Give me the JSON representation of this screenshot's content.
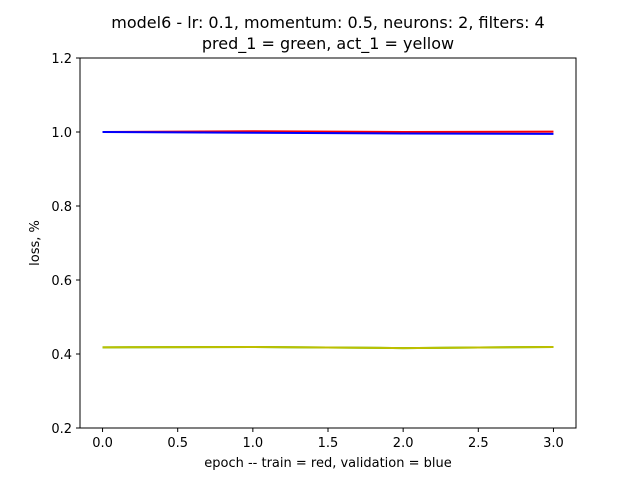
{
  "chart_data": {
    "type": "line",
    "title": "model6 - lr: 0.1, momentum: 0.5, neurons: 2, filters: 4",
    "subtitle": "pred_1 = green, act_1 = yellow",
    "xlabel": "epoch -- train = red, validation = blue",
    "ylabel": "loss, %",
    "xlim": [
      -0.15,
      3.15
    ],
    "ylim": [
      0.2,
      1.2
    ],
    "x_ticks": [
      0.0,
      0.5,
      1.0,
      1.5,
      2.0,
      2.5,
      3.0
    ],
    "x_tick_labels": [
      "0.0",
      "0.5",
      "1.0",
      "1.5",
      "2.0",
      "2.5",
      "3.0"
    ],
    "y_ticks": [
      0.2,
      0.4,
      0.6,
      0.8,
      1.0,
      1.2
    ],
    "y_tick_labels": [
      "0.2",
      "0.4",
      "0.6",
      "0.8",
      "1.0",
      "1.2"
    ],
    "grid": false,
    "legend": "none",
    "x": [
      0,
      1,
      2,
      3
    ],
    "series": [
      {
        "color": "#ff0000",
        "values": [
          1.0,
          1.002,
          1.0,
          1.001
        ]
      },
      {
        "color": "#0000ff",
        "values": [
          1.0,
          0.998,
          0.996,
          0.995
        ]
      },
      {
        "color": "#00bf00",
        "values": [
          0.418,
          0.419,
          0.416,
          0.419
        ]
      },
      {
        "color": "#bfbf00",
        "values": [
          0.418,
          0.419,
          0.416,
          0.419
        ]
      }
    ]
  }
}
